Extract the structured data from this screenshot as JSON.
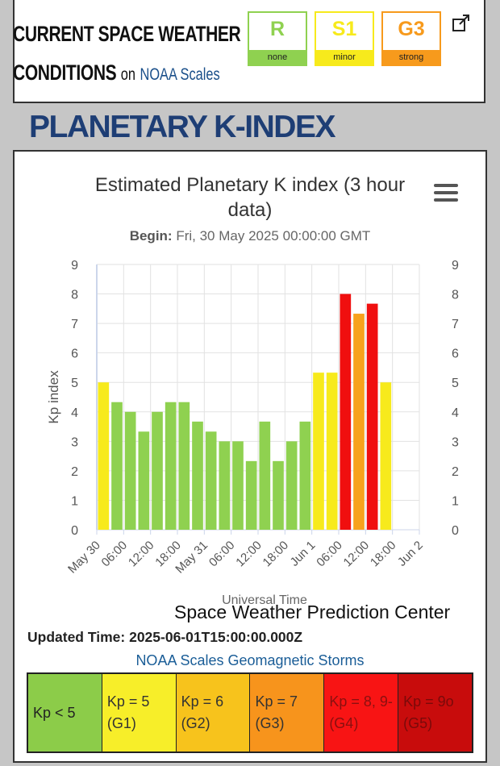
{
  "header": {
    "title_line1": "CURRENT SPACE WEATHER",
    "title_line2": "CONDITIONS",
    "on_text": "on",
    "link_text": "NOAA Scales",
    "scales": [
      {
        "letter": "R",
        "level": "none",
        "color": "#8fd150"
      },
      {
        "letter": "S1",
        "level": "minor",
        "color": "#f7ea1c"
      },
      {
        "letter": "G3",
        "level": "strong",
        "color": "#f79a1c"
      }
    ]
  },
  "section_title": "PLANETARY K-INDEX",
  "chart_data": {
    "type": "bar",
    "title": "Estimated Planetary K index (3 hour data)",
    "begin_label": "Begin:",
    "begin_value": "Fri, 30 May 2025 00:00:00 GMT",
    "xlabel": "Universal Time",
    "ylabel": "Kp index",
    "ylim": [
      0,
      9
    ],
    "yticks": [
      "0",
      "1",
      "2",
      "3",
      "4",
      "5",
      "6",
      "7",
      "8",
      "9"
    ],
    "xtick_labels": [
      "May 30",
      "06:00",
      "12:00",
      "18:00",
      "May 31",
      "06:00",
      "12:00",
      "18:00",
      "Jun 1",
      "06:00",
      "12:00",
      "18:00",
      "Jun 2"
    ],
    "values": [
      5,
      4.33,
      4,
      3.33,
      4,
      4.33,
      4.33,
      3.67,
      3.33,
      3,
      3,
      2.33,
      3.67,
      2.33,
      3,
      3.67,
      5.33,
      5.33,
      8,
      7.33,
      7.67,
      5
    ],
    "color_rules": {
      "below5": "#8fd150",
      "5": "#f7ea1c",
      "7": "#f7a21c",
      "8plus": "#f00f0f"
    },
    "grid": true,
    "credit": "Space Weather Prediction Center"
  },
  "updated": "Updated Time: 2025-06-01T15:00:00.000Z",
  "legend": {
    "title": "NOAA Scales Geomagnetic Storms",
    "cells": [
      {
        "text": "Kp < 5",
        "bg": "#8ccc49",
        "color": "#222"
      },
      {
        "text": "Kp = 5 (G1)",
        "bg": "#f7ee29",
        "color": "#333"
      },
      {
        "text": "Kp = 6 (G2)",
        "bg": "#f7c31c",
        "color": "#333"
      },
      {
        "text": "Kp = 7 (G3)",
        "bg": "#f7941c",
        "color": "#333"
      },
      {
        "text": "Kp = 8, 9- (G4)",
        "bg": "#f81414",
        "color": "#8a1010"
      },
      {
        "text": "Kp = 9o (G5)",
        "bg": "#c80c0c",
        "color": "#7a0a0a"
      }
    ]
  }
}
